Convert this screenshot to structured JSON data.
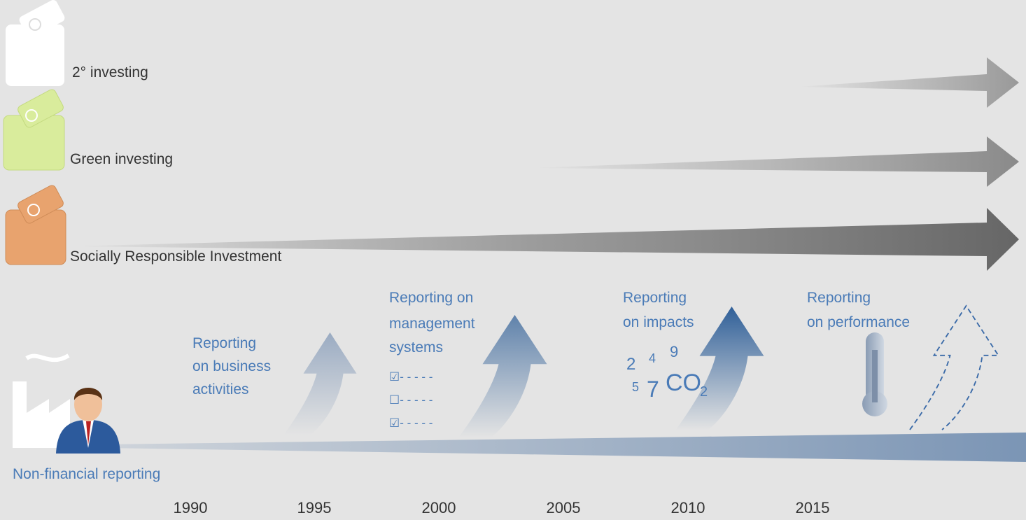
{
  "investing": [
    {
      "label": "2° investing"
    },
    {
      "label": "Green investing"
    },
    {
      "label": "Socially Responsible Investment"
    }
  ],
  "reporting": {
    "base_label": "Non-financial reporting",
    "steps": [
      {
        "lines": [
          "Reporting",
          "on business",
          "activities"
        ]
      },
      {
        "lines": [
          "Reporting on",
          "management",
          "systems"
        ],
        "checklist": [
          "☑- - - - -",
          "☐- - - - -",
          "☑- - - - -"
        ]
      },
      {
        "lines": [
          "Reporting",
          "on impacts"
        ],
        "figures": [
          "2",
          "4",
          "9",
          "5",
          "7",
          "CO",
          "2"
        ]
      },
      {
        "lines": [
          "Reporting",
          "on performance"
        ]
      }
    ]
  },
  "timeline": {
    "years": [
      "1990",
      "1995",
      "2000",
      "2005",
      "2010",
      "2015"
    ]
  }
}
